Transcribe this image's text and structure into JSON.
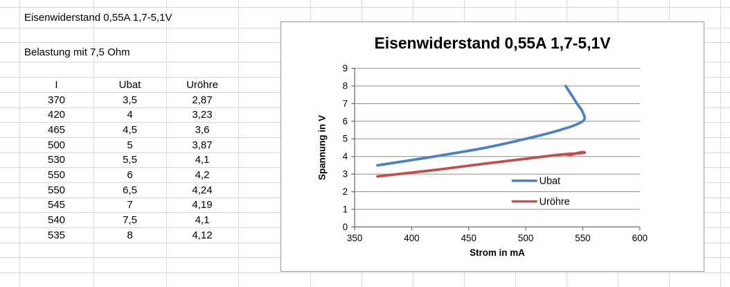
{
  "sheet": {
    "title": "Eisenwiderstand 0,55A 1,7-5,1V",
    "subtitle": "Belastung mit 7,5 Ohm",
    "table": {
      "headers": [
        "I",
        "Ubat",
        "Uröhre"
      ],
      "rows": [
        [
          "370",
          "3,5",
          "2,87"
        ],
        [
          "420",
          "4",
          "3,23"
        ],
        [
          "465",
          "4,5",
          "3,6"
        ],
        [
          "500",
          "5",
          "3,87"
        ],
        [
          "530",
          "5,5",
          "4,1"
        ],
        [
          "550",
          "6",
          "4,2"
        ],
        [
          "550",
          "6,5",
          "4,24"
        ],
        [
          "545",
          "7",
          "4,19"
        ],
        [
          "540",
          "7,5",
          "4,1"
        ],
        [
          "535",
          "8",
          "4,12"
        ]
      ]
    }
  },
  "chart_data": {
    "type": "scatter-smooth",
    "title": "Eisenwiderstand 0,55A 1,7-5,1V",
    "xlabel": "Strom in mA",
    "ylabel": "Spannung in V",
    "xlim": [
      350,
      600
    ],
    "ylim": [
      0,
      9
    ],
    "xticks": [
      350,
      400,
      450,
      500,
      550,
      600
    ],
    "yticks": [
      0,
      1,
      2,
      3,
      4,
      5,
      6,
      7,
      8,
      9
    ],
    "grid": "horizontal",
    "legend_position": "inside-right-middle",
    "series": [
      {
        "name": "Ubat",
        "color": "#4F81BD",
        "x": [
          370,
          420,
          465,
          500,
          530,
          550,
          550,
          545,
          540,
          535
        ],
        "y": [
          3.5,
          4,
          4.5,
          5,
          5.5,
          6,
          6.5,
          7,
          7.5,
          8
        ]
      },
      {
        "name": "Uröhre",
        "color": "#C0504D",
        "x": [
          370,
          420,
          465,
          500,
          530,
          550,
          550,
          545,
          540,
          535
        ],
        "y": [
          2.87,
          3.23,
          3.6,
          3.87,
          4.1,
          4.2,
          4.24,
          4.19,
          4.1,
          4.12
        ]
      }
    ],
    "colors": {
      "axis": "#6e6e6e",
      "gridline": "#8e8e8e",
      "sheet_grid": "#d9d9d9"
    }
  }
}
